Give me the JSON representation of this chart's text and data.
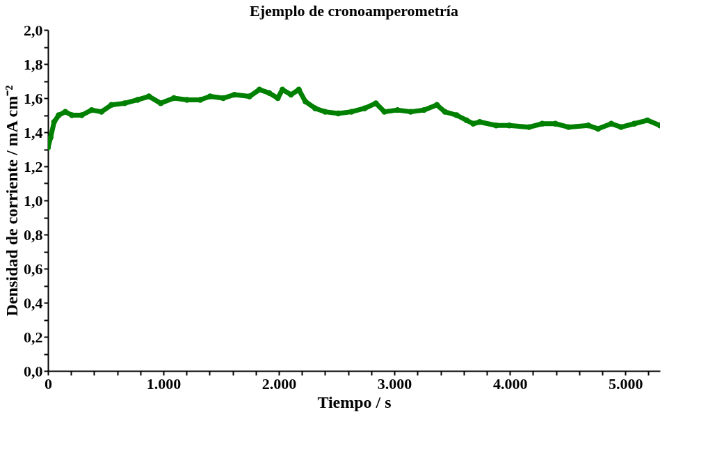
{
  "chart_data": {
    "type": "line",
    "title": "Ejemplo de cronoamperometría",
    "xlabel": "Tiempo / s",
    "ylabel": "Densidad de corriente / mA cm⁻²",
    "x": [
      0,
      23,
      53,
      93,
      150,
      207,
      292,
      378,
      463,
      549,
      663,
      776,
      874,
      976,
      1090,
      1204,
      1318,
      1404,
      1518,
      1614,
      1745,
      1831,
      1916,
      1990,
      2030,
      2104,
      2172,
      2229,
      2314,
      2400,
      2514,
      2628,
      2742,
      2839,
      2913,
      3027,
      3141,
      3255,
      3368,
      3437,
      3539,
      3625,
      3682,
      3739,
      3881,
      3995,
      4166,
      4280,
      4394,
      4508,
      4679,
      4764,
      4878,
      4963,
      5077,
      5191,
      5300
    ],
    "series": [
      {
        "color": "#008000",
        "values": [
          1.31,
          1.37,
          1.46,
          1.5,
          1.52,
          1.5,
          1.5,
          1.53,
          1.52,
          1.56,
          1.57,
          1.59,
          1.61,
          1.57,
          1.6,
          1.59,
          1.59,
          1.61,
          1.6,
          1.62,
          1.61,
          1.65,
          1.63,
          1.6,
          1.65,
          1.62,
          1.65,
          1.58,
          1.54,
          1.52,
          1.51,
          1.52,
          1.54,
          1.57,
          1.52,
          1.53,
          1.52,
          1.53,
          1.56,
          1.52,
          1.5,
          1.47,
          1.45,
          1.46,
          1.44,
          1.44,
          1.43,
          1.45,
          1.45,
          1.43,
          1.44,
          1.42,
          1.45,
          1.43,
          1.45,
          1.47,
          1.44
        ]
      }
    ],
    "xlim": [
      0,
      5300
    ],
    "xticks": [
      {
        "value": 0,
        "label": "0"
      },
      {
        "value": 200,
        "label": null
      },
      {
        "value": 400,
        "label": null
      },
      {
        "value": 600,
        "label": null
      },
      {
        "value": 800,
        "label": null
      },
      {
        "value": 1000,
        "label": "1.000"
      },
      {
        "value": 1200,
        "label": null
      },
      {
        "value": 1400,
        "label": null
      },
      {
        "value": 1600,
        "label": null
      },
      {
        "value": 1800,
        "label": null
      },
      {
        "value": 2000,
        "label": "2.000"
      },
      {
        "value": 2200,
        "label": null
      },
      {
        "value": 2400,
        "label": null
      },
      {
        "value": 2600,
        "label": null
      },
      {
        "value": 2800,
        "label": null
      },
      {
        "value": 3000,
        "label": "3.000"
      },
      {
        "value": 3200,
        "label": null
      },
      {
        "value": 3400,
        "label": null
      },
      {
        "value": 3600,
        "label": null
      },
      {
        "value": 3800,
        "label": null
      },
      {
        "value": 4000,
        "label": "4.000"
      },
      {
        "value": 4200,
        "label": null
      },
      {
        "value": 4400,
        "label": null
      },
      {
        "value": 4600,
        "label": null
      },
      {
        "value": 4800,
        "label": null
      },
      {
        "value": 5000,
        "label": "5.000"
      },
      {
        "value": 5200,
        "label": null
      }
    ],
    "ylim": [
      0,
      2
    ],
    "yticks": [
      {
        "value": 0,
        "label": "0,0"
      },
      {
        "value": 0.1,
        "label": null
      },
      {
        "value": 0.2,
        "label": "0,2"
      },
      {
        "value": 0.3,
        "label": null
      },
      {
        "value": 0.4,
        "label": "0,4"
      },
      {
        "value": 0.5,
        "label": null
      },
      {
        "value": 0.6,
        "label": "0,6"
      },
      {
        "value": 0.7,
        "label": null
      },
      {
        "value": 0.8,
        "label": "0,8"
      },
      {
        "value": 0.9,
        "label": null
      },
      {
        "value": 1.0,
        "label": "1,0"
      },
      {
        "value": 1.1,
        "label": null
      },
      {
        "value": 1.2,
        "label": "1,2"
      },
      {
        "value": 1.3,
        "label": null
      },
      {
        "value": 1.4,
        "label": "1,4"
      },
      {
        "value": 1.5,
        "label": null
      },
      {
        "value": 1.6,
        "label": "1,6"
      },
      {
        "value": 1.7,
        "label": null
      },
      {
        "value": 1.8,
        "label": "1,8"
      },
      {
        "value": 1.9,
        "label": null
      },
      {
        "value": 2.0,
        "label": "2,0"
      }
    ],
    "grid": false,
    "marker": "circle",
    "line_style": "solid"
  }
}
